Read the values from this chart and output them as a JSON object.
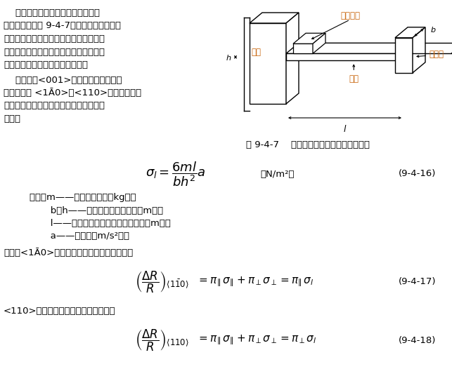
{
  "bg_color": "#ffffff",
  "fig_width": 6.43,
  "fig_height": 5.36,
  "dpi": 100,
  "text_color": "#000000",
  "orange_color": "#c8640a",
  "p1_lines": [
    "    压阻式加速度传感器是利用单晶硅",
    "作悬臂梁，如图 9-4-7，在其根部扩散出四",
    "个电阻，当悬臂梁自由端的质量块受有加",
    "速度作用时，悬壁梁受到弯矩作用，产生",
    "应力，使四个电阻阻值发生变化。"
  ],
  "p2_lines": [
    "    如果采用<001>晶向作为悬壁的单晶",
    "硅衬底，沿 <1Ā0>与<110>晶向各扩散两",
    "个电阻，由材料力学知悬臂梁根部所受的",
    "应力为"
  ],
  "desc_lines": [
    "    式中：m——质量块的质量（kg）；",
    "           b、h——悬壁梁的宽度与厚度（m）；",
    "           l——质量块中心至悬臂根部的距离（m）；",
    "           a——加速度（m/s²）。"
  ],
  "p3": "另外，<1Ā0>晶向的两个电阻阻值的变化率为",
  "p4": "<110>晶向的两个电阻阻值的变化率为",
  "fig_caption": "图 9-4-7    压阻式加速度传感器结构示意图",
  "label1": "(9-4-16)",
  "label2": "(9-4-17)",
  "label3": "(9-4-18)"
}
